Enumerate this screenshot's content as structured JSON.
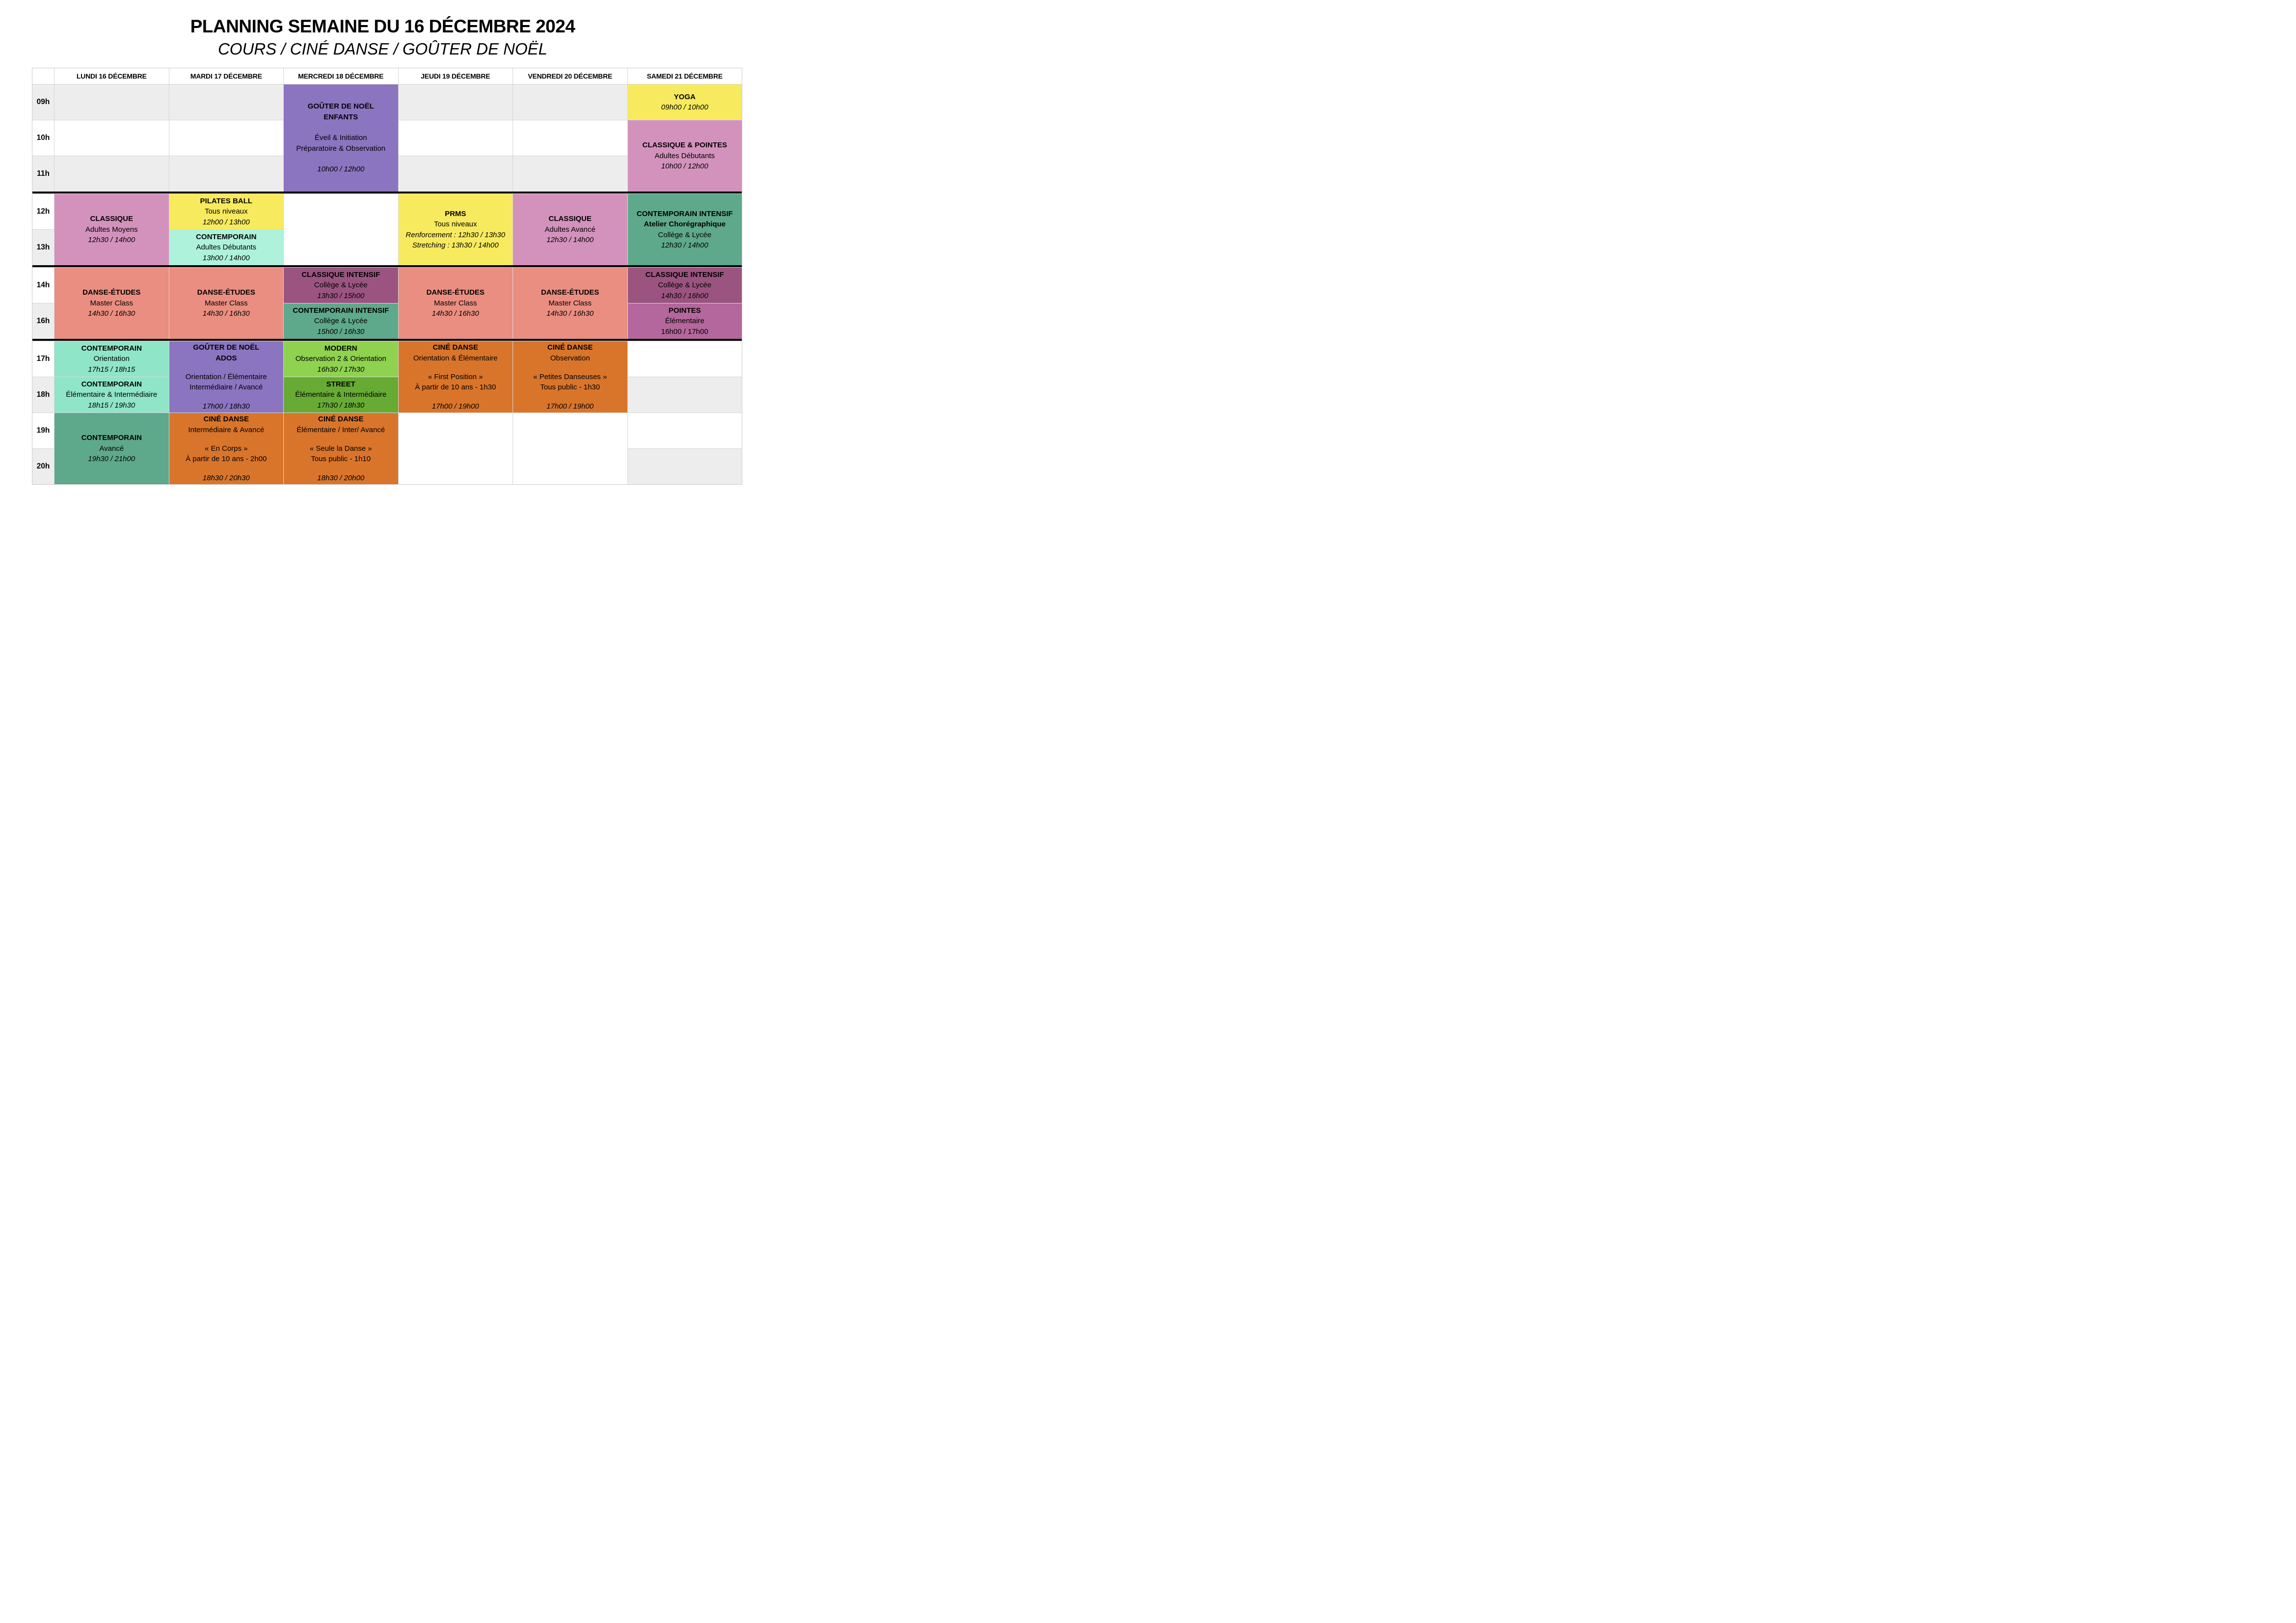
{
  "page": {
    "title": "PLANNING SEMAINE DU 16 DÉCEMBRE 2024",
    "subtitle": "COURS / CINÉ DANSE / GOÛTER DE NOËL"
  },
  "colors": {
    "purple": "#8b74c0",
    "yellow": "#f7ea5e",
    "pink": "#d392bc",
    "mint": "#aef2db",
    "mint2": "#8ee5c7",
    "green": "#5ea88c",
    "salmon": "#e98e81",
    "magenta": "#9b5480",
    "magenta2": "#b4679c",
    "orange": "#d9752b",
    "lightgreen": "#8fd24f",
    "green2": "#67ab35",
    "row_shade": "#ededed",
    "grid_line": "#d5d5d5",
    "divider": "#050505"
  },
  "schedule": {
    "day_headers": [
      "LUNDI 16 DÉCEMBRE",
      "MARDI 17 DÉCEMBRE",
      "MERCREDI 18 DÉCEMBRE",
      "JEUDI 19 DÉCEMBRE",
      "VENDREDI 20 DÉCEMBRE",
      "SAMEDI 21 DÉCEMBRE"
    ],
    "hour_rows": [
      {
        "label": "09h",
        "shaded": true
      },
      {
        "label": "10h",
        "shaded": false
      },
      {
        "label": "11h",
        "shaded": true
      },
      {
        "label": "12h",
        "shaded": false
      },
      {
        "label": "13h",
        "shaded": true
      },
      {
        "label": "14h",
        "shaded": false
      },
      {
        "label": "16h",
        "shaded": true
      },
      {
        "label": "17h",
        "shaded": false
      },
      {
        "label": "18h",
        "shaded": true
      },
      {
        "label": "19h",
        "shaded": false
      },
      {
        "label": "20h",
        "shaded": true
      }
    ],
    "section_breaks_after_rows": [
      2,
      4,
      6
    ],
    "blank_merged_cells": [
      {
        "day": 2,
        "row": 3,
        "span": 2
      },
      {
        "day": 3,
        "row": 9,
        "span": 2
      },
      {
        "day": 4,
        "row": 9,
        "span": 2
      }
    ],
    "events": [
      {
        "day": 2,
        "row": 0,
        "span": 3,
        "color": "purple",
        "lines": [
          {
            "t": "GOÛTER DE NOËL",
            "s": "b"
          },
          {
            "t": "ENFANTS",
            "s": "b"
          },
          {
            "t": "",
            "s": "g"
          },
          {
            "t": "Éveil & Initiation",
            "s": "r"
          },
          {
            "t": "Préparatoire & Observation",
            "s": "r"
          },
          {
            "t": "",
            "s": "g"
          },
          {
            "t": "10h00 / 12h00",
            "s": "i"
          }
        ]
      },
      {
        "day": 5,
        "row": 0,
        "span": 1,
        "color": "yellow",
        "lines": [
          {
            "t": "YOGA",
            "s": "b"
          },
          {
            "t": "09h00 / 10h00",
            "s": "i"
          }
        ]
      },
      {
        "day": 5,
        "row": 1,
        "span": 2,
        "color": "pink",
        "lines": [
          {
            "t": "CLASSIQUE & POINTES",
            "s": "b"
          },
          {
            "t": "Adultes Débutants",
            "s": "r"
          },
          {
            "t": "10h00 / 12h00",
            "s": "i"
          }
        ]
      },
      {
        "day": 0,
        "row": 3,
        "span": 2,
        "color": "pink",
        "lines": [
          {
            "t": "CLASSIQUE",
            "s": "b"
          },
          {
            "t": "Adultes Moyens",
            "s": "r"
          },
          {
            "t": "12h30 / 14h00",
            "s": "i"
          }
        ]
      },
      {
        "day": 1,
        "row": 3,
        "span": 1,
        "color": "yellow",
        "lines": [
          {
            "t": "PILATES BALL",
            "s": "b"
          },
          {
            "t": "Tous niveaux",
            "s": "r"
          },
          {
            "t": "12h00 / 13h00",
            "s": "i"
          }
        ]
      },
      {
        "day": 1,
        "row": 4,
        "span": 1,
        "color": "mint",
        "lines": [
          {
            "t": "CONTEMPORAIN",
            "s": "b"
          },
          {
            "t": "Adultes Débutants",
            "s": "r"
          },
          {
            "t": "13h00 / 14h00",
            "s": "i"
          }
        ]
      },
      {
        "day": 3,
        "row": 3,
        "span": 2,
        "color": "yellow",
        "lines": [
          {
            "t": "PRMS",
            "s": "b"
          },
          {
            "t": "Tous niveaux",
            "s": "r"
          },
          {
            "t": "Renforcement : 12h30 / 13h30",
            "s": "i"
          },
          {
            "t": "Stretching : 13h30 / 14h00",
            "s": "i"
          }
        ]
      },
      {
        "day": 4,
        "row": 3,
        "span": 2,
        "color": "pink",
        "lines": [
          {
            "t": "CLASSIQUE",
            "s": "b"
          },
          {
            "t": "Adultes Avancé",
            "s": "r"
          },
          {
            "t": "12h30 / 14h00",
            "s": "i"
          }
        ]
      },
      {
        "day": 5,
        "row": 3,
        "span": 2,
        "color": "green",
        "lines": [
          {
            "t": "CONTEMPORAIN INTENSIF",
            "s": "b"
          },
          {
            "t": "Atelier Chorégraphique",
            "s": "b"
          },
          {
            "t": "Collège & Lycée",
            "s": "r"
          },
          {
            "t": "12h30 / 14h00",
            "s": "i"
          }
        ]
      },
      {
        "day": 0,
        "row": 5,
        "span": 2,
        "color": "salmon",
        "lines": [
          {
            "t": "DANSE-ÉTUDES",
            "s": "b"
          },
          {
            "t": "Master Class",
            "s": "r"
          },
          {
            "t": "14h30 / 16h30",
            "s": "i"
          }
        ]
      },
      {
        "day": 1,
        "row": 5,
        "span": 2,
        "color": "salmon",
        "lines": [
          {
            "t": "DANSE-ÉTUDES",
            "s": "b"
          },
          {
            "t": "Master Class",
            "s": "r"
          },
          {
            "t": "14h30 / 16h30",
            "s": "i"
          }
        ]
      },
      {
        "day": 2,
        "row": 5,
        "span": 1,
        "color": "magenta",
        "lines": [
          {
            "t": "CLASSIQUE INTENSIF",
            "s": "b"
          },
          {
            "t": "Collège & Lycée",
            "s": "r"
          },
          {
            "t": "13h30 / 15h00",
            "s": "i"
          }
        ]
      },
      {
        "day": 2,
        "row": 6,
        "span": 1,
        "color": "green",
        "lines": [
          {
            "t": "CONTEMPORAIN INTENSIF",
            "s": "b"
          },
          {
            "t": "Collège & Lycée",
            "s": "r"
          },
          {
            "t": "15h00 / 16h30",
            "s": "i"
          }
        ]
      },
      {
        "day": 3,
        "row": 5,
        "span": 2,
        "color": "salmon",
        "lines": [
          {
            "t": "DANSE-ÉTUDES",
            "s": "b"
          },
          {
            "t": "Master Class",
            "s": "r"
          },
          {
            "t": "14h30 / 16h30",
            "s": "i"
          }
        ]
      },
      {
        "day": 4,
        "row": 5,
        "span": 2,
        "color": "salmon",
        "lines": [
          {
            "t": "DANSE-ÉTUDES",
            "s": "b"
          },
          {
            "t": "Master Class",
            "s": "r"
          },
          {
            "t": "14h30 / 16h30",
            "s": "i"
          }
        ]
      },
      {
        "day": 5,
        "row": 5,
        "span": 1,
        "color": "magenta",
        "lines": [
          {
            "t": "CLASSIQUE INTENSIF",
            "s": "b"
          },
          {
            "t": "Collège & Lycée",
            "s": "r"
          },
          {
            "t": "14h30 / 16h00",
            "s": "i"
          }
        ]
      },
      {
        "day": 5,
        "row": 6,
        "span": 1,
        "color": "magenta2",
        "lines": [
          {
            "t": "POINTES",
            "s": "b"
          },
          {
            "t": "Élémentaire",
            "s": "r"
          },
          {
            "t": "16h00 / 17h00",
            "s": "r"
          }
        ]
      },
      {
        "day": 0,
        "row": 7,
        "span": 1,
        "color": "mint2",
        "lines": [
          {
            "t": "CONTEMPORAIN",
            "s": "b"
          },
          {
            "t": "Orientation",
            "s": "r"
          },
          {
            "t": "17h15 / 18h15",
            "s": "i"
          }
        ]
      },
      {
        "day": 0,
        "row": 8,
        "span": 1,
        "color": "mint2",
        "lines": [
          {
            "t": "CONTEMPORAIN",
            "s": "b"
          },
          {
            "t": "Élémentaire & Intermédiaire",
            "s": "r"
          },
          {
            "t": "18h15 / 19h30",
            "s": "i"
          }
        ]
      },
      {
        "day": 1,
        "row": 7,
        "span": 2,
        "color": "purple",
        "lines": [
          {
            "t": "GOÛTER DE NOËL",
            "s": "b"
          },
          {
            "t": "ADOS",
            "s": "b"
          },
          {
            "t": "",
            "s": "g"
          },
          {
            "t": "Orientation / Élémentaire",
            "s": "r"
          },
          {
            "t": "Intermédiaire / Avancé",
            "s": "r"
          },
          {
            "t": "",
            "s": "g"
          },
          {
            "t": "17h00 / 18h30",
            "s": "i"
          }
        ]
      },
      {
        "day": 2,
        "row": 7,
        "span": 1,
        "color": "lightgreen",
        "lines": [
          {
            "t": "MODERN",
            "s": "b"
          },
          {
            "t": "Observation 2 & Orientation",
            "s": "r"
          },
          {
            "t": "16h30 / 17h30",
            "s": "i"
          }
        ]
      },
      {
        "day": 2,
        "row": 8,
        "span": 1,
        "color": "green2",
        "lines": [
          {
            "t": "STREET",
            "s": "b"
          },
          {
            "t": "Élémentaire & Intermédiaire",
            "s": "r"
          },
          {
            "t": "17h30 / 18h30",
            "s": "i"
          }
        ]
      },
      {
        "day": 3,
        "row": 7,
        "span": 2,
        "color": "orange",
        "lines": [
          {
            "t": "CINÉ DANSE",
            "s": "b"
          },
          {
            "t": "Orientation & Élémentaire",
            "s": "r"
          },
          {
            "t": "",
            "s": "g"
          },
          {
            "t": "« First Position »",
            "s": "r"
          },
          {
            "t": "À partir de 10 ans - 1h30",
            "s": "r"
          },
          {
            "t": "",
            "s": "g"
          },
          {
            "t": "17h00 / 19h00",
            "s": "i"
          }
        ]
      },
      {
        "day": 4,
        "row": 7,
        "span": 2,
        "color": "orange",
        "lines": [
          {
            "t": "CINÉ DANSE",
            "s": "b"
          },
          {
            "t": "Observation",
            "s": "r"
          },
          {
            "t": "",
            "s": "g"
          },
          {
            "t": "« Petites Danseuses »",
            "s": "r"
          },
          {
            "t": "Tous public - 1h30",
            "s": "r"
          },
          {
            "t": "",
            "s": "g"
          },
          {
            "t": "17h00 / 19h00",
            "s": "i"
          }
        ]
      },
      {
        "day": 0,
        "row": 9,
        "span": 2,
        "color": "green",
        "lines": [
          {
            "t": "CONTEMPORAIN",
            "s": "b"
          },
          {
            "t": "Avancé",
            "s": "r"
          },
          {
            "t": "19h30 / 21h00",
            "s": "i"
          }
        ]
      },
      {
        "day": 1,
        "row": 9,
        "span": 2,
        "color": "orange",
        "lines": [
          {
            "t": "CINÉ DANSE",
            "s": "b"
          },
          {
            "t": "Intermédiaire & Avancé",
            "s": "r"
          },
          {
            "t": "",
            "s": "g"
          },
          {
            "t": "« En Corps »",
            "s": "r"
          },
          {
            "t": "À partir de 10 ans - 2h00",
            "s": "r"
          },
          {
            "t": "",
            "s": "g"
          },
          {
            "t": "18h30 / 20h30",
            "s": "i"
          }
        ]
      },
      {
        "day": 2,
        "row": 9,
        "span": 2,
        "color": "orange",
        "lines": [
          {
            "t": "CINÉ DANSE",
            "s": "b"
          },
          {
            "t": "Élémentaire / Inter/ Avancé",
            "s": "r"
          },
          {
            "t": "",
            "s": "g"
          },
          {
            "t": "« Seule la Danse »",
            "s": "r"
          },
          {
            "t": "Tous public - 1h10",
            "s": "r"
          },
          {
            "t": "",
            "s": "g"
          },
          {
            "t": "18h30 / 20h00",
            "s": "i"
          }
        ]
      }
    ]
  }
}
